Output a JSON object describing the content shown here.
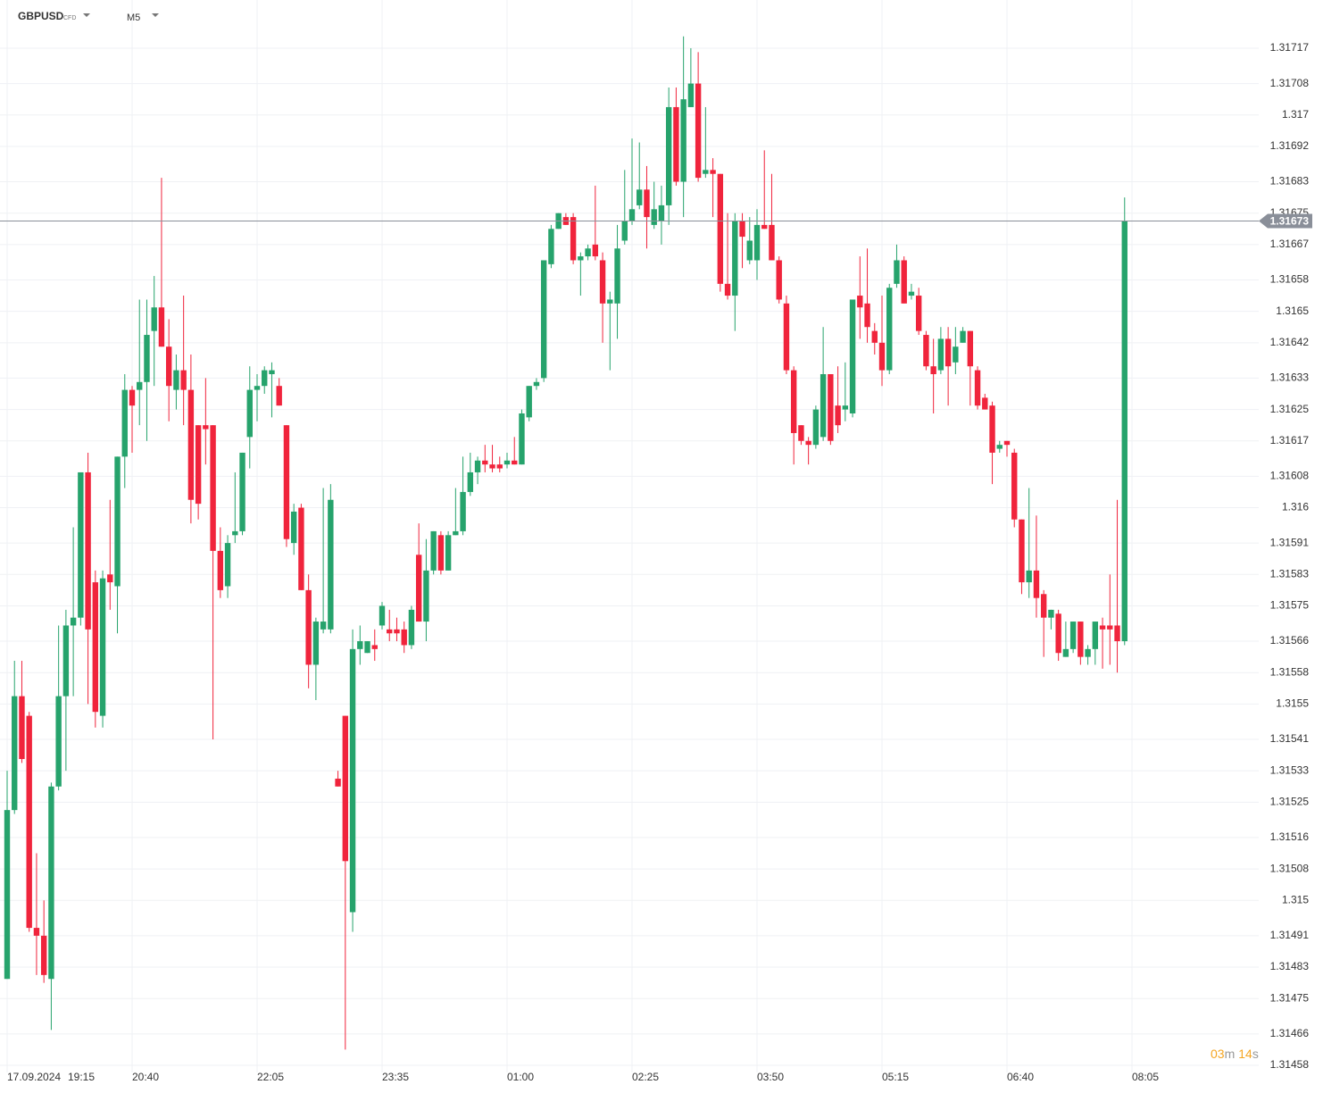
{
  "header": {
    "symbol": "GBPUSD",
    "symbol_tag": "CFD",
    "timeframe": "M5"
  },
  "countdown": {
    "minutes": "03",
    "minutes_unit": "m",
    "seconds": "14",
    "seconds_unit": "s"
  },
  "chart_data": {
    "type": "candlestick",
    "up_color": "#26a36c",
    "down_color": "#f0243c",
    "grid": true,
    "x_date": "17.09.2024",
    "xticks": [
      "19:15",
      "20:40",
      "22:05",
      "23:35",
      "01:00",
      "02:25",
      "03:50",
      "05:15",
      "06:40",
      "08:05"
    ],
    "ylim": [
      1.31458,
      1.31717
    ],
    "yticks": [
      1.31717,
      1.31708,
      1.317,
      1.31692,
      1.31683,
      1.31675,
      1.31667,
      1.31658,
      1.3165,
      1.31642,
      1.31633,
      1.31625,
      1.31617,
      1.31608,
      1.316,
      1.31591,
      1.31583,
      1.31575,
      1.31566,
      1.31558,
      1.3155,
      1.31541,
      1.31533,
      1.31525,
      1.31516,
      1.31508,
      1.315,
      1.31491,
      1.31483,
      1.31475,
      1.31466,
      1.31458
    ],
    "last_price": 1.31673,
    "open": [
      1.3148,
      1.31523,
      1.31552,
      1.31547,
      1.31493,
      1.31491,
      1.3148,
      1.31529,
      1.31552,
      1.3157,
      1.31572,
      1.31609,
      1.31581,
      1.31547,
      1.31583,
      1.3158,
      1.31613,
      1.3163,
      1.3163,
      1.31632,
      1.31645,
      1.31651,
      1.31641,
      1.3163,
      1.31635,
      1.3163,
      1.31621,
      1.31621,
      1.31621,
      1.31589,
      1.3158,
      1.31593,
      1.31594,
      1.31618,
      1.3163,
      1.31631,
      1.31634,
      1.31631,
      1.31621,
      1.31591,
      1.316,
      1.31579,
      1.3156,
      1.31569,
      1.31569,
      1.31531,
      1.31547,
      1.31497,
      1.31564,
      1.31563,
      1.31565,
      1.3157,
      1.31569,
      1.31569,
      1.31569,
      1.31565,
      1.31588,
      1.31571,
      1.31584,
      1.31593,
      1.31584,
      1.31593,
      1.31594,
      1.31604,
      1.31609,
      1.31612,
      1.31611,
      1.31611,
      1.31611,
      1.31612,
      1.31611,
      1.31623,
      1.31631,
      1.31633,
      1.31662,
      1.31671,
      1.31674,
      1.31674,
      1.31663,
      1.31664,
      1.31667,
      1.31663,
      1.31652,
      1.31652,
      1.31668,
      1.31673,
      1.31677,
      1.31681,
      1.31672,
      1.31673,
      1.31677,
      1.31702,
      1.31683,
      1.31702,
      1.31708,
      1.31685,
      1.31686,
      1.31685,
      1.31657,
      1.31654,
      1.31673,
      1.31663,
      1.31663,
      1.31672,
      1.31672,
      1.31663,
      1.31652,
      1.31635,
      1.31621,
      1.31617,
      1.31616,
      1.31618,
      1.31634,
      1.31626,
      1.31625,
      1.31624,
      1.31654,
      1.31652,
      1.31645,
      1.31642,
      1.31635,
      1.31657,
      1.31663,
      1.31654,
      1.31654,
      1.31644,
      1.31636,
      1.31635,
      1.31643,
      1.31637,
      1.31642,
      1.31645,
      1.31635,
      1.31628,
      1.31626,
      1.31615,
      1.31617,
      1.31614,
      1.31597,
      1.31581,
      1.31584,
      1.31578,
      1.31572,
      1.31573,
      1.31562,
      1.31564,
      1.31571,
      1.31562,
      1.31564,
      1.3157,
      1.3157,
      1.3157,
      1.31566
    ],
    "high": [
      1.31533,
      1.31561,
      1.31561,
      1.31548,
      1.31512,
      1.315,
      1.3153,
      1.3157,
      1.31574,
      1.31595,
      1.31609,
      1.31614,
      1.31584,
      1.31584,
      1.31602,
      1.31613,
      1.31634,
      1.31631,
      1.31653,
      1.31653,
      1.31659,
      1.31684,
      1.31648,
      1.31639,
      1.31654,
      1.31639,
      1.31621,
      1.31633,
      1.31621,
      1.31595,
      1.31593,
      1.31609,
      1.31614,
      1.31636,
      1.31634,
      1.31636,
      1.31637,
      1.31633,
      1.31621,
      1.31601,
      1.31601,
      1.31583,
      1.31572,
      1.31605,
      1.31606,
      1.31533,
      1.31547,
      1.31569,
      1.3157,
      1.31566,
      1.31569,
      1.31576,
      1.31574,
      1.31572,
      1.31571,
      1.31575,
      1.31596,
      1.31592,
      1.31594,
      1.31594,
      1.31594,
      1.31605,
      1.31613,
      1.31614,
      1.31613,
      1.31616,
      1.31616,
      1.31613,
      1.31614,
      1.31618,
      1.31625,
      1.31631,
      1.31633,
      1.31663,
      1.31672,
      1.31675,
      1.31675,
      1.31675,
      1.31665,
      1.31667,
      1.31682,
      1.31665,
      1.31655,
      1.31672,
      1.31686,
      1.31694,
      1.31693,
      1.31687,
      1.31683,
      1.31682,
      1.31707,
      1.31707,
      1.3172,
      1.31717,
      1.31716,
      1.31702,
      1.31689,
      1.31685,
      1.31675,
      1.31675,
      1.31675,
      1.31674,
      1.31676,
      1.31691,
      1.31685,
      1.31664,
      1.31654,
      1.31636,
      1.31621,
      1.31618,
      1.31626,
      1.31646,
      1.31634,
      1.31636,
      1.31637,
      1.31653,
      1.31664,
      1.31666,
      1.31647,
      1.31654,
      1.31657,
      1.31667,
      1.31664,
      1.31657,
      1.31656,
      1.31645,
      1.31643,
      1.31646,
      1.31646,
      1.31646,
      1.31646,
      1.31645,
      1.31636,
      1.31629,
      1.31627,
      1.31617,
      1.31617,
      1.31615,
      1.31597,
      1.31605,
      1.31598,
      1.31579,
      1.31574,
      1.31574,
      1.31571,
      1.31571,
      1.31571,
      1.31565,
      1.31571,
      1.31572,
      1.31583,
      1.31602,
      1.31679
    ],
    "low": [
      1.3148,
      1.31522,
      1.31535,
      1.31492,
      1.31481,
      1.31479,
      1.31467,
      1.31528,
      1.31533,
      1.31552,
      1.3157,
      1.3155,
      1.31544,
      1.31544,
      1.31574,
      1.31568,
      1.31605,
      1.31614,
      1.31621,
      1.31617,
      1.31631,
      1.31641,
      1.31622,
      1.31625,
      1.31621,
      1.31596,
      1.31597,
      1.31611,
      1.31541,
      1.31577,
      1.31577,
      1.31591,
      1.31593,
      1.3161,
      1.31622,
      1.31629,
      1.31623,
      1.31626,
      1.3159,
      1.31588,
      1.31579,
      1.31554,
      1.31551,
      1.31568,
      1.31568,
      1.31529,
      1.31462,
      1.31492,
      1.3156,
      1.31563,
      1.31561,
      1.31569,
      1.31566,
      1.31566,
      1.31563,
      1.31564,
      1.31571,
      1.31566,
      1.31583,
      1.31583,
      1.31584,
      1.31593,
      1.31593,
      1.31603,
      1.31606,
      1.31609,
      1.31609,
      1.31609,
      1.3161,
      1.31611,
      1.31611,
      1.31622,
      1.3163,
      1.31632,
      1.31661,
      1.31671,
      1.31672,
      1.31662,
      1.31654,
      1.31663,
      1.31663,
      1.31642,
      1.31635,
      1.31643,
      1.31667,
      1.31672,
      1.31676,
      1.31666,
      1.31671,
      1.31667,
      1.31672,
      1.31682,
      1.31674,
      1.31702,
      1.31683,
      1.31684,
      1.31674,
      1.31655,
      1.31653,
      1.31645,
      1.31661,
      1.31662,
      1.31658,
      1.31671,
      1.31663,
      1.31652,
      1.31634,
      1.31611,
      1.31616,
      1.31611,
      1.31615,
      1.31617,
      1.31616,
      1.31619,
      1.31622,
      1.31623,
      1.31643,
      1.31642,
      1.31639,
      1.31631,
      1.31634,
      1.31656,
      1.31652,
      1.31653,
      1.31644,
      1.31635,
      1.31624,
      1.31634,
      1.31626,
      1.31634,
      1.31642,
      1.31626,
      1.31625,
      1.31625,
      1.31606,
      1.31614,
      1.31613,
      1.31595,
      1.31578,
      1.31577,
      1.31572,
      1.31562,
      1.31569,
      1.31561,
      1.31562,
      1.31563,
      1.3156,
      1.3156,
      1.3156,
      1.31559,
      1.3156,
      1.31558,
      1.31565
    ],
    "close": [
      1.31523,
      1.31552,
      1.31536,
      1.31493,
      1.31491,
      1.31481,
      1.31529,
      1.31552,
      1.3157,
      1.31572,
      1.31609,
      1.31569,
      1.31548,
      1.31582,
      1.31581,
      1.31613,
      1.3163,
      1.31626,
      1.31632,
      1.31644,
      1.31651,
      1.31641,
      1.31631,
      1.31635,
      1.3163,
      1.31602,
      1.31601,
      1.3162,
      1.31589,
      1.31579,
      1.31591,
      1.31594,
      1.31614,
      1.3163,
      1.31631,
      1.31635,
      1.31635,
      1.31626,
      1.31592,
      1.31599,
      1.31579,
      1.3156,
      1.31571,
      1.31571,
      1.31602,
      1.31529,
      1.3151,
      1.31564,
      1.31566,
      1.31566,
      1.31564,
      1.31575,
      1.31568,
      1.31568,
      1.31565,
      1.31574,
      1.31571,
      1.31584,
      1.31594,
      1.31584,
      1.31593,
      1.31594,
      1.31604,
      1.31609,
      1.31612,
      1.31611,
      1.3161,
      1.3161,
      1.31612,
      1.31611,
      1.31624,
      1.31631,
      1.31632,
      1.31663,
      1.31671,
      1.31675,
      1.31672,
      1.31663,
      1.31664,
      1.31666,
      1.31664,
      1.31652,
      1.31653,
      1.31666,
      1.31673,
      1.31676,
      1.31681,
      1.31674,
      1.31676,
      1.31677,
      1.31702,
      1.31683,
      1.31704,
      1.31708,
      1.31684,
      1.31686,
      1.31685,
      1.31657,
      1.31654,
      1.31673,
      1.31669,
      1.31668,
      1.31672,
      1.31671,
      1.31663,
      1.31653,
      1.31635,
      1.31619,
      1.31617,
      1.31616,
      1.31625,
      1.31634,
      1.31617,
      1.31621,
      1.31626,
      1.31653,
      1.31651,
      1.31646,
      1.31642,
      1.31635,
      1.31656,
      1.31663,
      1.31652,
      1.31655,
      1.31645,
      1.31636,
      1.31634,
      1.31643,
      1.31636,
      1.31641,
      1.31645,
      1.31636,
      1.31626,
      1.31625,
      1.31614,
      1.31616,
      1.31616,
      1.31597,
      1.31581,
      1.31584,
      1.31577,
      1.31572,
      1.31574,
      1.31563,
      1.31564,
      1.31571,
      1.31562,
      1.31564,
      1.31571,
      1.31569,
      1.31569,
      1.31566,
      1.31673
    ]
  }
}
